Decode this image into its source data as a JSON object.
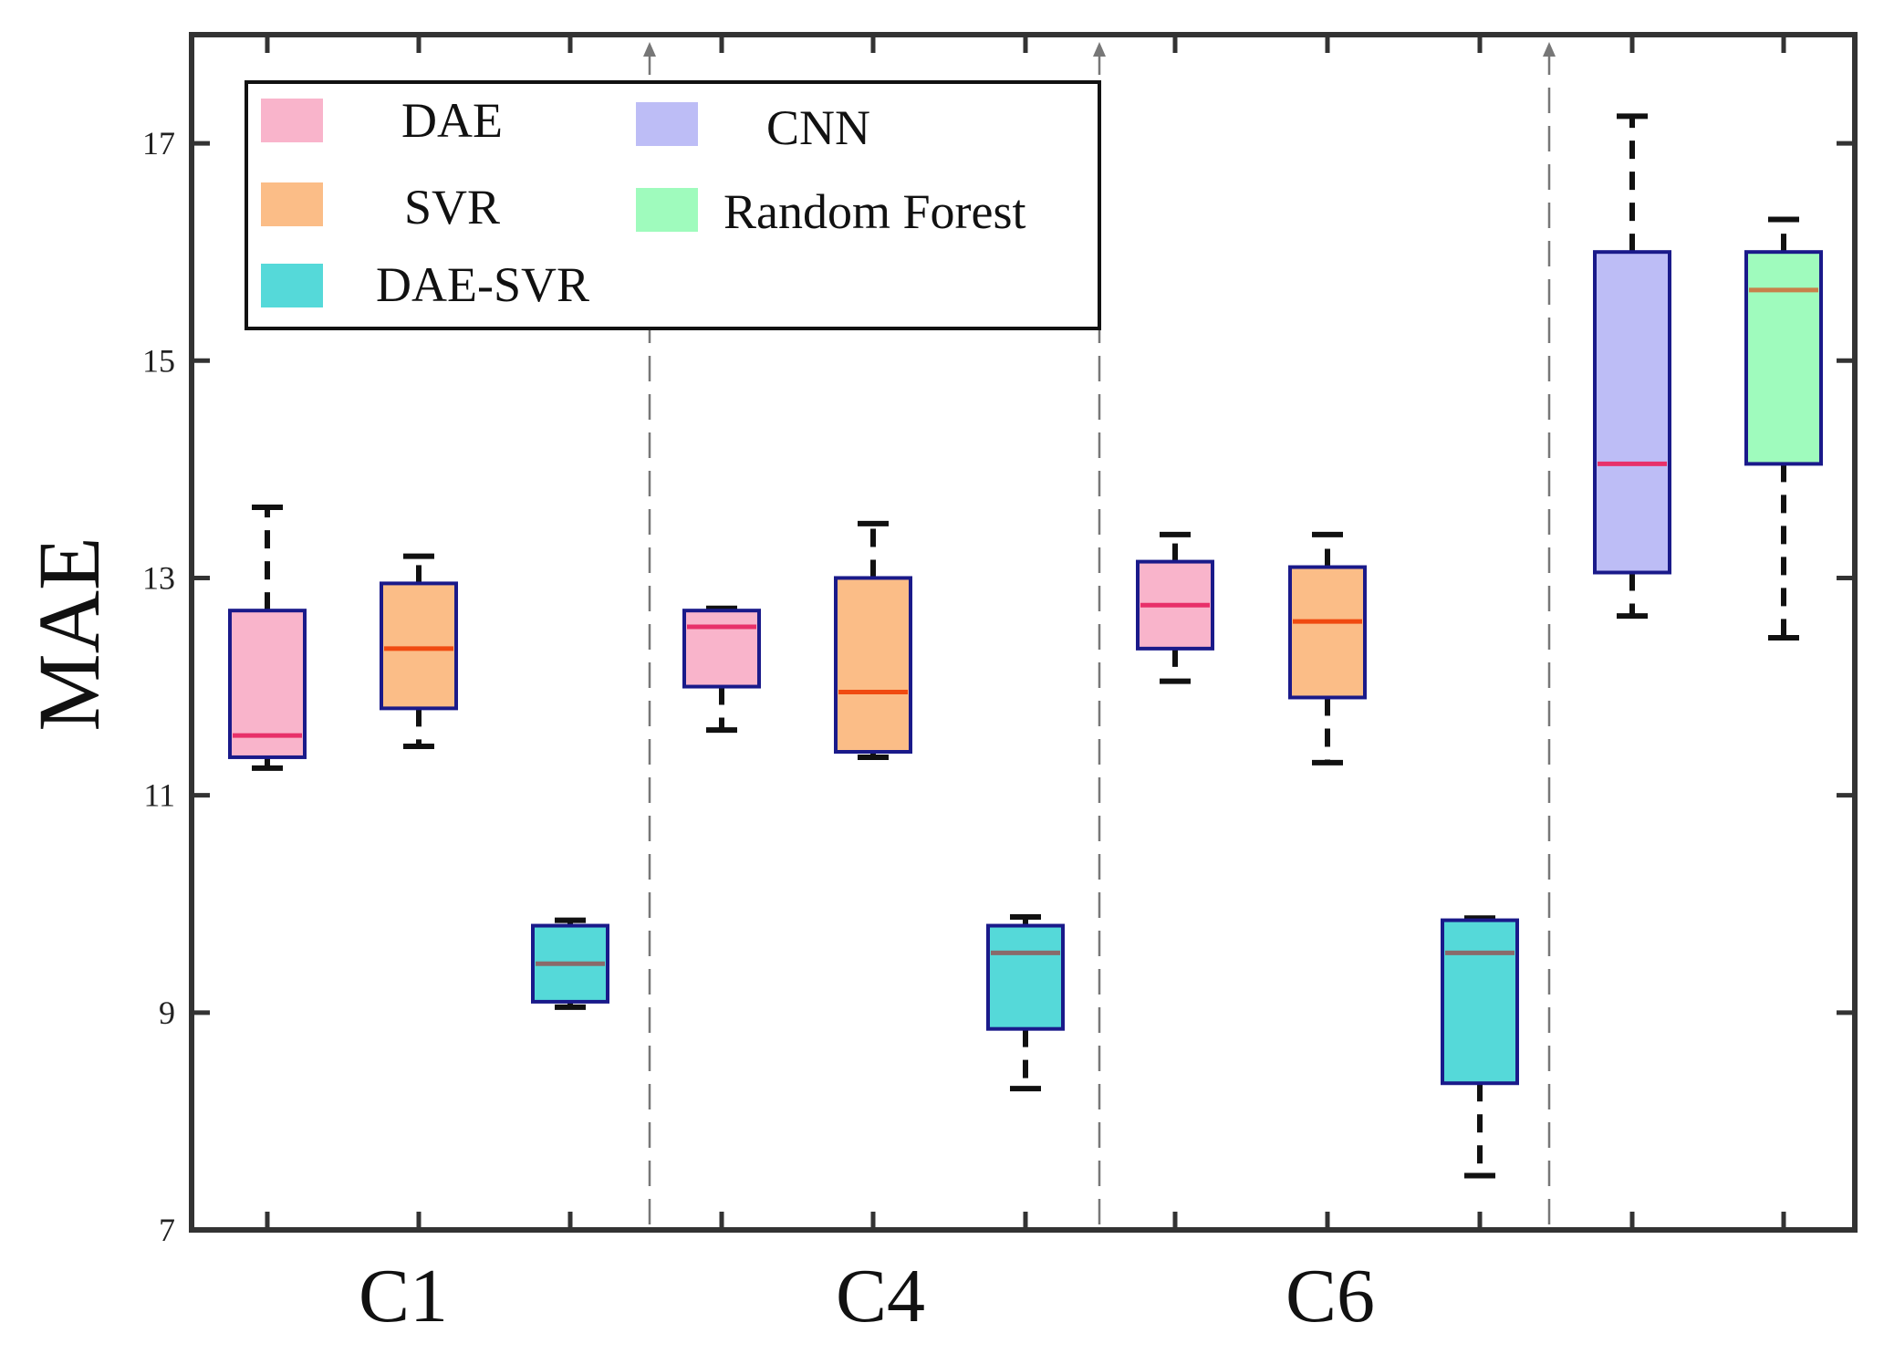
{
  "chart_data": {
    "type": "box",
    "title": "",
    "xlabel": "",
    "ylabel": "MAE",
    "ylim": [
      7,
      18
    ],
    "yticks": [
      7,
      9,
      11,
      13,
      15,
      17
    ],
    "grid": false,
    "legend_position": "top-left",
    "groups": [
      "C1",
      "C4",
      "C6",
      ""
    ],
    "legend": [
      {
        "name": "DAE",
        "color": "#f9b4cb"
      },
      {
        "name": "SVR",
        "color": "#fbbd87"
      },
      {
        "name": "DAE-SVR",
        "color": "#55d9d9"
      },
      {
        "name": "CNN",
        "color": "#bdbdf6"
      },
      {
        "name": "Random Forest",
        "color": "#9ffbbd"
      }
    ],
    "boxes": [
      {
        "group": "C1",
        "series": "DAE",
        "color": "#f9b4cb",
        "median_color": "#e8306a",
        "whisker_low": 11.25,
        "q1": 11.35,
        "median": 11.55,
        "q3": 12.7,
        "whisker_high": 13.65
      },
      {
        "group": "C1",
        "series": "SVR",
        "color": "#fbbd87",
        "median_color": "#f04a10",
        "whisker_low": 11.45,
        "q1": 11.8,
        "median": 12.35,
        "q3": 12.95,
        "whisker_high": 13.2
      },
      {
        "group": "C1",
        "series": "DAE-SVR",
        "color": "#55d9d9",
        "median_color": "#8a6a6a",
        "whisker_low": 9.05,
        "q1": 9.1,
        "median": 9.45,
        "q3": 9.8,
        "whisker_high": 9.85
      },
      {
        "group": "C4",
        "series": "DAE",
        "color": "#f9b4cb",
        "median_color": "#e8306a",
        "whisker_low": 11.6,
        "q1": 12.0,
        "median": 12.55,
        "q3": 12.7,
        "whisker_high": 12.72
      },
      {
        "group": "C4",
        "series": "SVR",
        "color": "#fbbd87",
        "median_color": "#f04a10",
        "whisker_low": 11.35,
        "q1": 11.4,
        "median": 11.95,
        "q3": 13.0,
        "whisker_high": 13.5
      },
      {
        "group": "C4",
        "series": "DAE-SVR",
        "color": "#55d9d9",
        "median_color": "#8a6a6a",
        "whisker_low": 8.3,
        "q1": 8.85,
        "median": 9.55,
        "q3": 9.8,
        "whisker_high": 9.88
      },
      {
        "group": "C6",
        "series": "DAE",
        "color": "#f9b4cb",
        "median_color": "#e8306a",
        "whisker_low": 12.05,
        "q1": 12.35,
        "median": 12.75,
        "q3": 13.15,
        "whisker_high": 13.4
      },
      {
        "group": "C6",
        "series": "SVR",
        "color": "#fbbd87",
        "median_color": "#f04a10",
        "whisker_low": 11.3,
        "q1": 11.9,
        "median": 12.6,
        "q3": 13.1,
        "whisker_high": 13.4
      },
      {
        "group": "C6",
        "series": "DAE-SVR",
        "color": "#55d9d9",
        "median_color": "#8a6a6a",
        "whisker_low": 7.5,
        "q1": 8.35,
        "median": 9.55,
        "q3": 9.85,
        "whisker_high": 9.87
      },
      {
        "group": "",
        "series": "CNN",
        "color": "#bdbdf6",
        "median_color": "#e8306a",
        "whisker_low": 12.65,
        "q1": 13.05,
        "median": 14.05,
        "q3": 16.0,
        "whisker_high": 17.25
      },
      {
        "group": "",
        "series": "Random Forest",
        "color": "#9ffbbd",
        "median_color": "#c8804a",
        "whisker_low": 12.45,
        "q1": 14.05,
        "median": 15.65,
        "q3": 16.0,
        "whisker_high": 16.3
      }
    ]
  }
}
